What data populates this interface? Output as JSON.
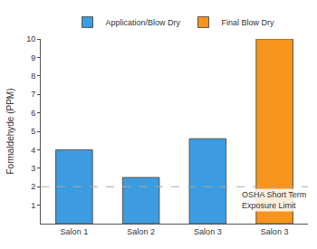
{
  "chart_data": {
    "type": "bar",
    "y_label": "Formaldehyde (PPM)",
    "categories": [
      "Salon 1",
      "Salon 2",
      "Salon 3",
      "Salon 3"
    ],
    "series": [
      {
        "name": "Application/Blow Dry",
        "color": "#3d9be0",
        "values": [
          4,
          2.5,
          4.6,
          null
        ]
      },
      {
        "name": "Final Blow Dry",
        "color": "#f7941d",
        "values": [
          null,
          null,
          null,
          10
        ]
      }
    ],
    "ylim": [
      0,
      10
    ],
    "yticks": [
      1,
      2,
      3,
      4,
      5,
      6,
      7,
      8,
      9,
      10
    ],
    "grid": false,
    "legend": "top",
    "annotations": [
      {
        "text": "OSHA Short Term\nExposure Limit",
        "y": 2,
        "line_style": "dash",
        "color": "#aaaaaa"
      }
    ]
  }
}
